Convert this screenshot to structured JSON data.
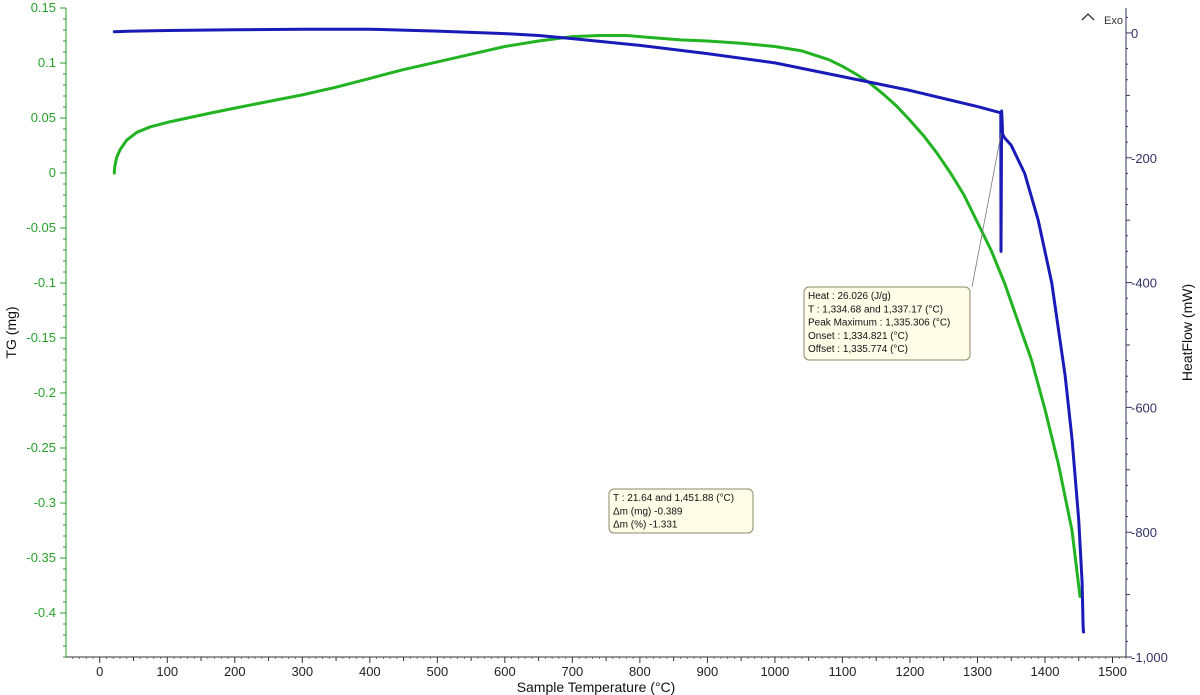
{
  "colors": {
    "tg": "#22b322",
    "tg_axis": "#2aa02a",
    "heatflow": "#1a1ab8",
    "heatflow_axis": "#333366",
    "annotation_bg": "#fffce8",
    "annotation_border": "#8a8a6a"
  },
  "chart_data": {
    "type": "line",
    "xlabel": "Sample Temperature (°C)",
    "ylabel_left": "TG (mg)",
    "ylabel_right": "HeatFlow (mW)",
    "xlim": [
      -50,
      1520
    ],
    "ylim_left": [
      -0.44,
      0.15
    ],
    "ylim_right": [
      -1000,
      40
    ],
    "x_ticks_major": [
      0,
      100,
      200,
      300,
      400,
      500,
      600,
      700,
      800,
      900,
      1000,
      1100,
      1200,
      1300,
      1400,
      1500
    ],
    "x_tick_labels": [
      "0",
      "100",
      "200",
      "300",
      "400",
      "500",
      "600",
      "700",
      "800",
      "900",
      "1000",
      "1100",
      "1200",
      "1300",
      "1400",
      "1500"
    ],
    "y_ticks_left": [
      0.15,
      0.1,
      0.05,
      0,
      -0.05,
      -0.1,
      -0.15,
      -0.2,
      -0.25,
      -0.3,
      -0.35,
      -0.4
    ],
    "y_tick_labels_left": [
      "0.15",
      "0.1",
      "0.05",
      "0",
      "-0.05",
      "-0.1",
      "-0.15",
      "-0.2",
      "-0.25",
      "-0.3",
      "-0.35",
      "-0.4"
    ],
    "y_ticks_right": [
      0,
      -200,
      -400,
      -600,
      -800,
      -1000
    ],
    "y_tick_labels_right": [
      "0",
      "-200",
      "-400",
      "-600",
      "-800",
      "-1,000"
    ],
    "exo_label": "Exo",
    "grid": false,
    "series": [
      {
        "key": "tg",
        "axis": "left",
        "x": [
          21.6,
          22,
          25,
          30,
          40,
          55,
          75,
          100,
          130,
          160,
          200,
          250,
          300,
          350,
          400,
          450,
          500,
          550,
          600,
          650,
          700,
          740,
          780,
          820,
          860,
          900,
          950,
          1000,
          1040,
          1060,
          1080,
          1100,
          1120,
          1140,
          1160,
          1180,
          1200,
          1220,
          1240,
          1260,
          1280,
          1300,
          1320,
          1340,
          1360,
          1380,
          1400,
          1420,
          1440,
          1451.9
        ],
        "y": [
          0.0,
          0.005,
          0.014,
          0.021,
          0.03,
          0.037,
          0.042,
          0.046,
          0.05,
          0.054,
          0.059,
          0.065,
          0.071,
          0.078,
          0.086,
          0.094,
          0.101,
          0.108,
          0.115,
          0.12,
          0.124,
          0.125,
          0.125,
          0.123,
          0.121,
          0.12,
          0.118,
          0.115,
          0.111,
          0.107,
          0.103,
          0.097,
          0.09,
          0.082,
          0.072,
          0.061,
          0.048,
          0.034,
          0.018,
          0.0,
          -0.02,
          -0.045,
          -0.07,
          -0.1,
          -0.135,
          -0.17,
          -0.215,
          -0.265,
          -0.325,
          -0.385
        ]
      },
      {
        "key": "heatflow",
        "axis": "right",
        "x": [
          21.6,
          50,
          100,
          200,
          300,
          400,
          500,
          600,
          650,
          700,
          800,
          900,
          1000,
          1100,
          1200,
          1250,
          1300,
          1334.6,
          1334.8,
          1335.3,
          1335.7,
          1336.5,
          1337.2,
          1340,
          1350,
          1370,
          1390,
          1410,
          1430,
          1440,
          1450,
          1455,
          1456.5,
          1457
        ],
        "y": [
          2,
          3,
          4,
          5,
          6,
          6,
          3,
          -1,
          -4,
          -9,
          -20,
          -33,
          -48,
          -70,
          -92,
          -105,
          -118,
          -128,
          -350,
          -250,
          -125,
          -140,
          -162,
          -168,
          -180,
          -225,
          -300,
          -400,
          -550,
          -650,
          -780,
          -880,
          -950,
          -960
        ]
      }
    ],
    "annotations": [
      {
        "key": "peak",
        "lines": [
          "Heat :  26.026 (J/g)",
          "T : 1,334.68 and 1,337.17 (°C)",
          "Peak Maximum :  1,335.306 (°C)",
          "Onset :  1,334.821 (°C)",
          "Offset :  1,335.774 (°C)"
        ]
      },
      {
        "key": "mass",
        "lines": [
          "T : 21.64 and 1,451.88 (°C)",
          "Δm (mg) -0.389",
          "Δm (%) -1.331"
        ]
      }
    ]
  }
}
